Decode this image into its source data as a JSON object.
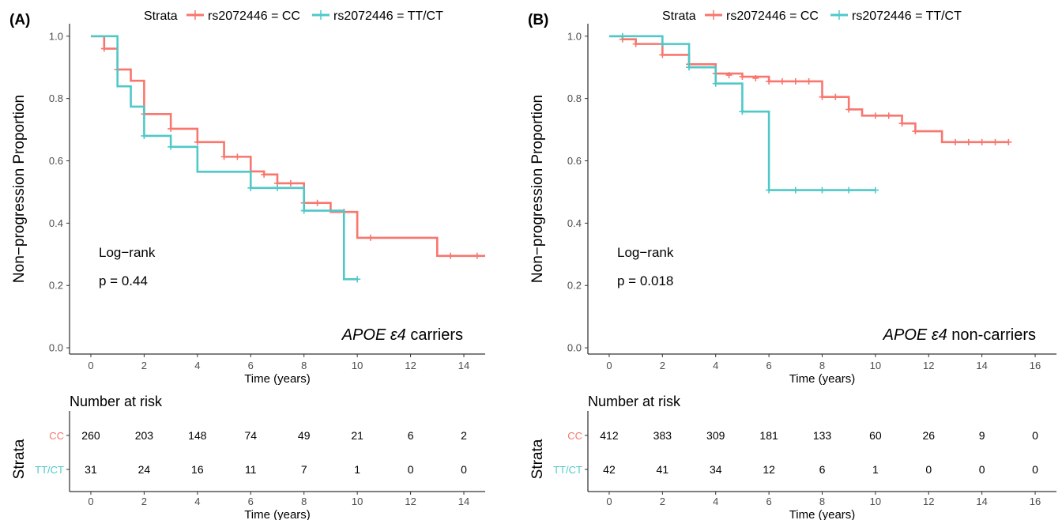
{
  "figure": {
    "colors": {
      "CC": "#F8766D",
      "TT/CT": "#4FC8C8"
    }
  },
  "chart_data": [
    {
      "panel_label": "(A)",
      "type": "line",
      "subtype": "kaplan-meier",
      "title": "",
      "legend": {
        "title": "Strata",
        "entries": [
          "rs2072446  =  CC",
          "rs2072446 = TT/CT"
        ],
        "position": "top"
      },
      "xlabel": "Time (years)",
      "ylabel": "Non−progression Proportion",
      "xlim": [
        -0.8,
        14.8
      ],
      "ylim": [
        -0.02,
        1.04
      ],
      "xticks": [
        0,
        2,
        4,
        6,
        8,
        10,
        12,
        14
      ],
      "yticks": [
        0.0,
        0.2,
        0.4,
        0.6,
        0.8,
        1.0
      ],
      "ytick_labels": [
        "0.0",
        "0.2",
        "0.4",
        "0.6",
        "0.8",
        "1.0"
      ],
      "grid": false,
      "annotations": {
        "test": "Log−rank",
        "p": "p = 0.44",
        "gene": "APOE",
        "epsilon": "ε4",
        "group": " carriers"
      },
      "series": [
        {
          "name": "rs2072446  =  CC",
          "color": "#F8766D",
          "steps": [
            [
              0,
              1.0
            ],
            [
              0.5,
              0.96
            ],
            [
              1.0,
              0.893
            ],
            [
              1.5,
              0.857
            ],
            [
              2.0,
              0.75
            ],
            [
              3.0,
              0.703
            ],
            [
              4.0,
              0.66
            ],
            [
              5.0,
              0.613
            ],
            [
              6.0,
              0.566
            ],
            [
              6.5,
              0.556
            ],
            [
              7.0,
              0.528
            ],
            [
              8.0,
              0.465
            ],
            [
              9.0,
              0.436
            ],
            [
              10.0,
              0.353
            ],
            [
              13.0,
              0.295
            ],
            [
              14.8,
              0.295
            ]
          ],
          "censor": [
            [
              0.5,
              0.96
            ],
            [
              1.0,
              0.893
            ],
            [
              2.0,
              0.75
            ],
            [
              3.0,
              0.703
            ],
            [
              4.0,
              0.66
            ],
            [
              5.0,
              0.613
            ],
            [
              5.5,
              0.613
            ],
            [
              6.0,
              0.566
            ],
            [
              6.5,
              0.556
            ],
            [
              7.0,
              0.528
            ],
            [
              7.5,
              0.528
            ],
            [
              8.0,
              0.465
            ],
            [
              8.5,
              0.465
            ],
            [
              9.5,
              0.436
            ],
            [
              10.5,
              0.353
            ],
            [
              13.5,
              0.295
            ],
            [
              14.5,
              0.295
            ]
          ]
        },
        {
          "name": "rs2072446 = TT/CT",
          "color": "#4FC8C8",
          "steps": [
            [
              0,
              1.0
            ],
            [
              1.0,
              0.839
            ],
            [
              1.5,
              0.774
            ],
            [
              2.0,
              0.68
            ],
            [
              3.0,
              0.645
            ],
            [
              4.0,
              0.565
            ],
            [
              6.0,
              0.513
            ],
            [
              8.0,
              0.44
            ],
            [
              9.5,
              0.22
            ],
            [
              10.0,
              0.22
            ]
          ],
          "censor": [
            [
              2.0,
              0.68
            ],
            [
              3.0,
              0.645
            ],
            [
              6.0,
              0.513
            ],
            [
              7.0,
              0.513
            ],
            [
              8.0,
              0.44
            ],
            [
              10.0,
              0.22
            ]
          ]
        }
      ],
      "risk_table": {
        "title": "Number at risk",
        "ylabel": "Strata",
        "xlabel": "Time (years)",
        "times": [
          0,
          2,
          4,
          6,
          8,
          10,
          12,
          14
        ],
        "rows": [
          {
            "label": "CC",
            "color": "#F8766D",
            "values": [
              "260",
              "203",
              "148",
              "74",
              "49",
              "21",
              "6",
              "2"
            ]
          },
          {
            "label": "TT/CT",
            "color": "#4FC8C8",
            "values": [
              "31",
              "24",
              "16",
              "11",
              "7",
              "1",
              "0",
              "0"
            ]
          }
        ]
      }
    },
    {
      "panel_label": "(B)",
      "type": "line",
      "subtype": "kaplan-meier",
      "title": "",
      "legend": {
        "title": "Strata",
        "entries": [
          "rs2072446  =  CC",
          "rs2072446 = TT/CT"
        ],
        "position": "top"
      },
      "xlabel": "Time (years)",
      "ylabel": "Non−progression Proportion",
      "xlim": [
        -0.8,
        16.8
      ],
      "ylim": [
        -0.02,
        1.04
      ],
      "xticks": [
        0,
        2,
        4,
        6,
        8,
        10,
        12,
        14,
        16
      ],
      "yticks": [
        0.0,
        0.2,
        0.4,
        0.6,
        0.8,
        1.0
      ],
      "ytick_labels": [
        "0.0",
        "0.2",
        "0.4",
        "0.6",
        "0.8",
        "1.0"
      ],
      "grid": false,
      "annotations": {
        "test": "Log−rank",
        "p": "p = 0.018",
        "gene": "APOE",
        "epsilon": "ε4",
        "group": " non-carriers"
      },
      "series": [
        {
          "name": "rs2072446  =  CC",
          "color": "#F8766D",
          "steps": [
            [
              0,
              1.0
            ],
            [
              0.5,
              0.99
            ],
            [
              1.0,
              0.975
            ],
            [
              2.0,
              0.94
            ],
            [
              3.0,
              0.91
            ],
            [
              4.0,
              0.88
            ],
            [
              5.0,
              0.87
            ],
            [
              6.0,
              0.855
            ],
            [
              8.0,
              0.805
            ],
            [
              9.0,
              0.765
            ],
            [
              9.5,
              0.745
            ],
            [
              11.0,
              0.72
            ],
            [
              11.5,
              0.695
            ],
            [
              12.5,
              0.66
            ],
            [
              15.0,
              0.66
            ]
          ],
          "censor": [
            [
              0.5,
              0.99
            ],
            [
              1.0,
              0.975
            ],
            [
              2.0,
              0.94
            ],
            [
              3.0,
              0.91
            ],
            [
              4.0,
              0.88
            ],
            [
              4.5,
              0.875
            ],
            [
              5.0,
              0.87
            ],
            [
              5.5,
              0.865
            ],
            [
              6.0,
              0.855
            ],
            [
              6.5,
              0.855
            ],
            [
              7.0,
              0.855
            ],
            [
              7.5,
              0.855
            ],
            [
              8.0,
              0.805
            ],
            [
              8.5,
              0.805
            ],
            [
              9.0,
              0.765
            ],
            [
              10.0,
              0.745
            ],
            [
              10.5,
              0.745
            ],
            [
              11.0,
              0.72
            ],
            [
              11.5,
              0.695
            ],
            [
              13.0,
              0.66
            ],
            [
              13.5,
              0.66
            ],
            [
              14.0,
              0.66
            ],
            [
              14.5,
              0.66
            ],
            [
              15.0,
              0.66
            ]
          ]
        },
        {
          "name": "rs2072446 = TT/CT",
          "color": "#4FC8C8",
          "steps": [
            [
              0,
              1.0
            ],
            [
              2.0,
              0.975
            ],
            [
              3.0,
              0.9
            ],
            [
              4.0,
              0.848
            ],
            [
              5.0,
              0.758
            ],
            [
              6.0,
              0.506
            ],
            [
              10.0,
              0.506
            ]
          ],
          "censor": [
            [
              0.5,
              1.0
            ],
            [
              2.0,
              0.975
            ],
            [
              3.0,
              0.9
            ],
            [
              4.0,
              0.848
            ],
            [
              5.0,
              0.758
            ],
            [
              6.0,
              0.506
            ],
            [
              7.0,
              0.506
            ],
            [
              8.0,
              0.506
            ],
            [
              9.0,
              0.506
            ],
            [
              10.0,
              0.506
            ]
          ]
        }
      ],
      "risk_table": {
        "title": "Number at risk",
        "ylabel": "Strata",
        "xlabel": "Time (years)",
        "times": [
          0,
          2,
          4,
          6,
          8,
          10,
          12,
          14,
          16
        ],
        "rows": [
          {
            "label": "CC",
            "color": "#F8766D",
            "values": [
              "412",
              "383",
              "309",
              "181",
              "133",
              "60",
              "26",
              "9",
              "0"
            ]
          },
          {
            "label": "TT/CT",
            "color": "#4FC8C8",
            "values": [
              "42",
              "41",
              "34",
              "12",
              "6",
              "1",
              "0",
              "0",
              "0"
            ]
          }
        ]
      }
    }
  ]
}
